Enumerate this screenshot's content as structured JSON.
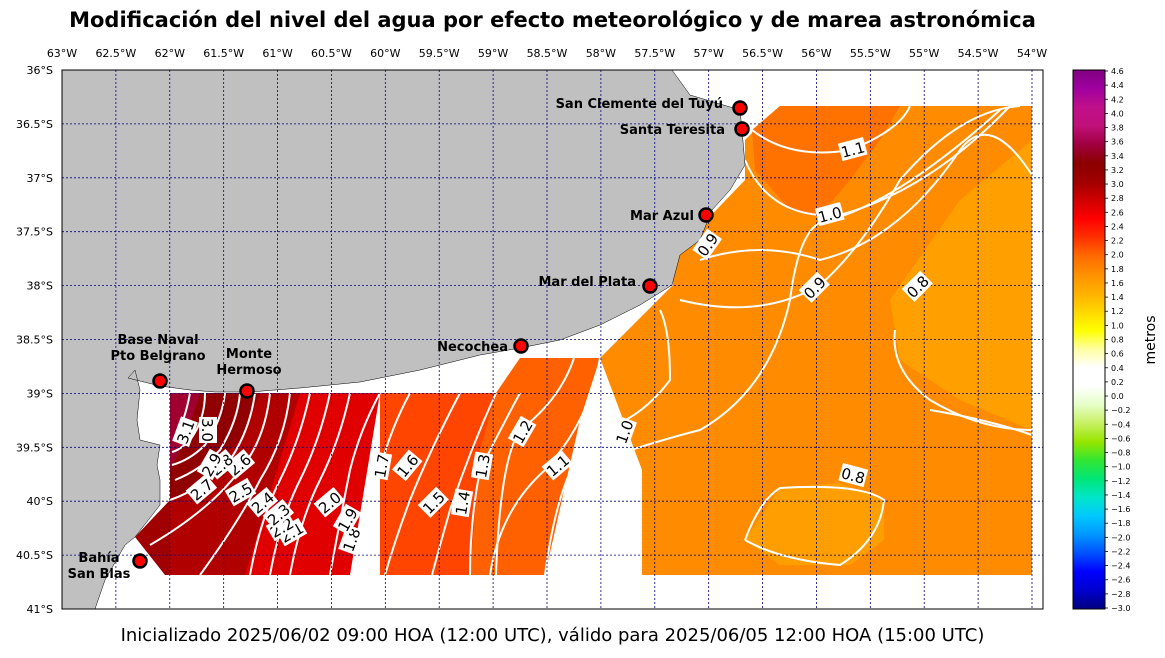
{
  "title": "Modificación del nivel del agua por efecto meteorológico y de marea astronómica",
  "footer": "Inicializado 2025/06/02 09:00 HOA (12:00 UTC), válido para 2025/06/05 12:00 HOA (15:00 UTC)",
  "lon_ticks": [
    "63°W",
    "62.5°W",
    "62°W",
    "61.5°W",
    "61°W",
    "60.5°W",
    "60°W",
    "59.5°W",
    "59°W",
    "58.5°W",
    "58°W",
    "57.5°W",
    "57°W",
    "56.5°W",
    "56°W",
    "55.5°W",
    "55°W",
    "54.5°W",
    "54°W"
  ],
  "lat_ticks": [
    "36°S",
    "36.5°S",
    "37°S",
    "37.5°S",
    "38°S",
    "38.5°S",
    "39°S",
    "39.5°S",
    "40°S",
    "40.5°S",
    "41°S"
  ],
  "cities": [
    {
      "name": "San Clemente del Tuyú",
      "lines": [
        "San Clemente del Tuyú"
      ]
    },
    {
      "name": "Santa Teresita",
      "lines": [
        "Santa Teresita"
      ]
    },
    {
      "name": "Mar Azul",
      "lines": [
        "Mar Azul"
      ]
    },
    {
      "name": "Mar del Plata",
      "lines": [
        "Mar del Plata"
      ]
    },
    {
      "name": "Necochea",
      "lines": [
        "Necochea"
      ]
    },
    {
      "name": "Base Naval Pto Belgrano",
      "lines": [
        "Base Naval",
        "Pto Belgrano"
      ]
    },
    {
      "name": "Monte Hermoso",
      "lines": [
        "Monte",
        "Hermoso"
      ]
    },
    {
      "name": "Bahía San Blas",
      "lines": [
        "Bahía",
        "San Blas"
      ]
    }
  ],
  "contour_labels": [
    "1.1",
    "1.0",
    "0.9",
    "0.9",
    "0.8",
    "0.8",
    "1.0",
    "1.2",
    "1.1",
    "1.3",
    "1.4",
    "1.5",
    "1.6",
    "1.7",
    "1.8",
    "1.9",
    "2.0",
    "2.1",
    "2.2",
    "2.3",
    "2.4",
    "2.5",
    "2.6",
    "2.7",
    "2.8",
    "2.9",
    "3.0",
    "3.1"
  ],
  "colorbar": {
    "title": "metros",
    "ticks": [
      "4.6",
      "4.4",
      "4.2",
      "4.0",
      "3.8",
      "3.6",
      "3.4",
      "3.2",
      "3.0",
      "2.8",
      "2.6",
      "2.4",
      "2.2",
      "2.0",
      "1.8",
      "1.6",
      "1.4",
      "1.2",
      "1.0",
      "0.8",
      "0.6",
      "0.4",
      "0.2",
      "0.0",
      "−0.2",
      "−0.4",
      "−0.6",
      "−0.8",
      "−1.0",
      "−1.2",
      "−1.4",
      "−1.6",
      "−1.8",
      "−2.0",
      "−2.2",
      "−2.4",
      "−2.6",
      "−2.8",
      "−3.0"
    ],
    "colors": [
      "#000080",
      "#0000cd",
      "#0000ff",
      "#0050ff",
      "#0096ff",
      "#00c8ff",
      "#00e6c8",
      "#00e678",
      "#32e632",
      "#96e600",
      "#c8f064",
      "#e6ffc8",
      "#ffffff",
      "#ffffff",
      "#ffffa0",
      "#ffff00",
      "#ffd700",
      "#ffb000",
      "#ff9000",
      "#ff6a00",
      "#ff3000",
      "#ff0000",
      "#d00000",
      "#a00000",
      "#8b0000",
      "#a00040",
      "#c0107a",
      "#c0108a",
      "#a000a0",
      "#800080"
    ]
  },
  "colors": {
    "land": "#c0c0c0",
    "grid": "#000080",
    "contour": "#ffffff",
    "city": "#ff0000"
  }
}
